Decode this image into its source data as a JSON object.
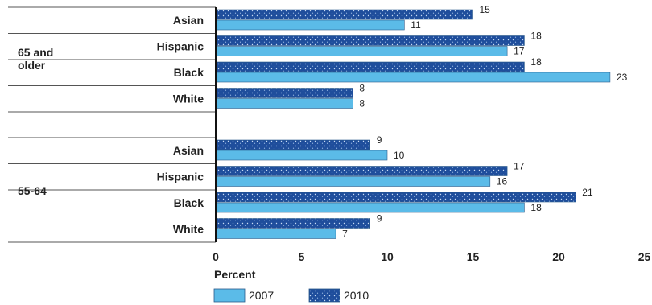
{
  "chart_data": {
    "type": "bar",
    "orientation": "horizontal",
    "groups": [
      {
        "name": "65 and older",
        "categories": [
          "Asian",
          "Hispanic",
          "Black",
          "White"
        ]
      },
      {
        "name": "55-64",
        "categories": [
          "Asian",
          "Hispanic",
          "Black",
          "White"
        ]
      }
    ],
    "series": [
      {
        "name": "2010",
        "color": "#1f4e9c",
        "pattern": "dotted",
        "values": [
          [
            15,
            18,
            18,
            8
          ],
          [
            9,
            17,
            21,
            9
          ]
        ]
      },
      {
        "name": "2007",
        "color": "#5bbbe8",
        "values": [
          [
            11,
            17,
            23,
            8
          ],
          [
            10,
            16,
            18,
            7
          ]
        ]
      }
    ],
    "xlabel": "Percent",
    "xlim": [
      0,
      25
    ],
    "xticks": [
      "0",
      "5",
      "10",
      "15",
      "20",
      "25"
    ],
    "legend": [
      {
        "label": "2007",
        "color": "#5bbbe8"
      },
      {
        "label": "2010",
        "color": "#1f4e9c",
        "pattern": "dotted"
      }
    ],
    "legend_position": "bottom-left",
    "grid": false
  }
}
